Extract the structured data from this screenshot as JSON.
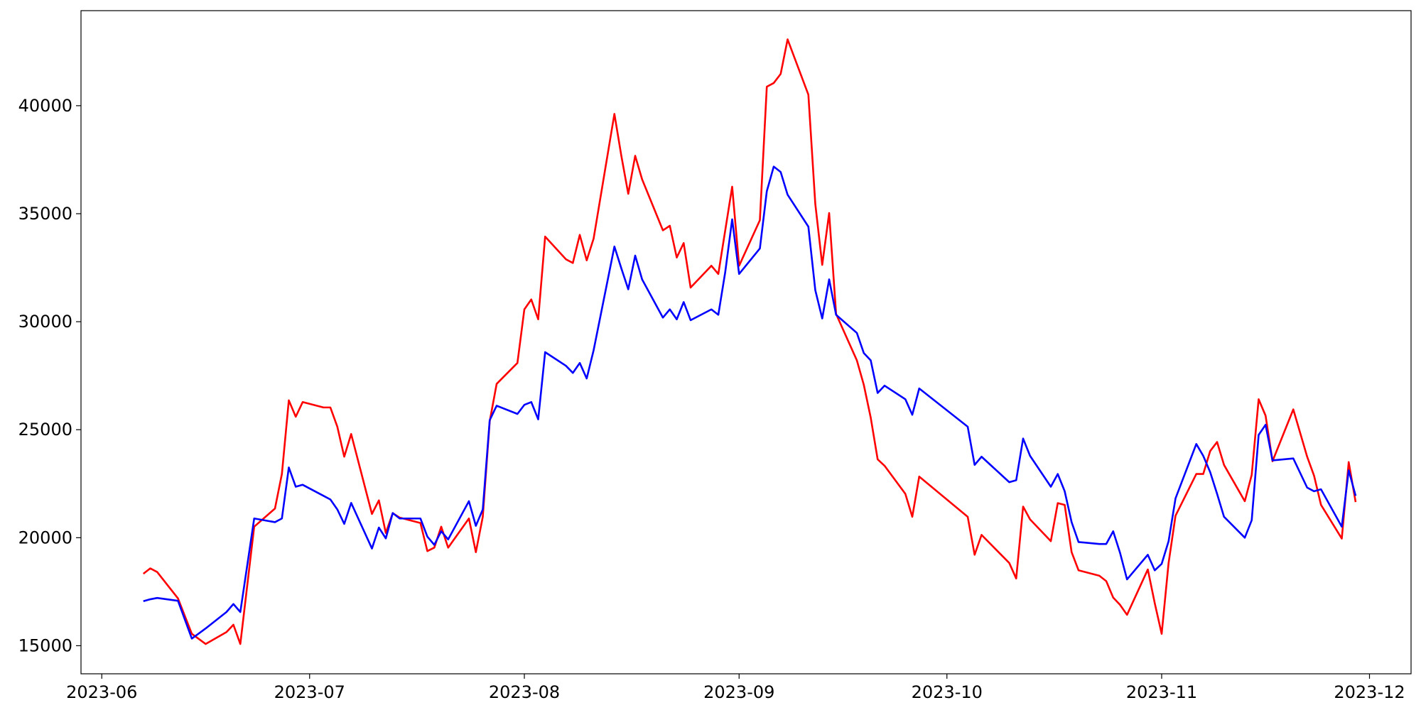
{
  "chart_data": {
    "type": "line",
    "x": [
      "2023-06-07",
      "2023-06-08",
      "2023-06-09",
      "2023-06-12",
      "2023-06-14",
      "2023-06-16",
      "2023-06-19",
      "2023-06-20",
      "2023-06-21",
      "2023-06-23",
      "2023-06-26",
      "2023-06-27",
      "2023-06-28",
      "2023-06-29",
      "2023-06-30",
      "2023-07-03",
      "2023-07-04",
      "2023-07-05",
      "2023-07-06",
      "2023-07-07",
      "2023-07-10",
      "2023-07-11",
      "2023-07-12",
      "2023-07-13",
      "2023-07-14",
      "2023-07-17",
      "2023-07-18",
      "2023-07-19",
      "2023-07-20",
      "2023-07-21",
      "2023-07-24",
      "2023-07-25",
      "2023-07-26",
      "2023-07-27",
      "2023-07-28",
      "2023-07-31",
      "2023-08-01",
      "2023-08-02",
      "2023-08-03",
      "2023-08-04",
      "2023-08-07",
      "2023-08-08",
      "2023-08-09",
      "2023-08-10",
      "2023-08-11",
      "2023-08-14",
      "2023-08-15",
      "2023-08-16",
      "2023-08-17",
      "2023-08-18",
      "2023-08-21",
      "2023-08-22",
      "2023-08-23",
      "2023-08-24",
      "2023-08-25",
      "2023-08-28",
      "2023-08-29",
      "2023-08-30",
      "2023-08-31",
      "2023-09-01",
      "2023-09-04",
      "2023-09-05",
      "2023-09-06",
      "2023-09-07",
      "2023-09-08",
      "2023-09-11",
      "2023-09-12",
      "2023-09-13",
      "2023-09-14",
      "2023-09-15",
      "2023-09-18",
      "2023-09-19",
      "2023-09-20",
      "2023-09-21",
      "2023-09-22",
      "2023-09-25",
      "2023-09-26",
      "2023-09-27",
      "2023-10-04",
      "2023-10-05",
      "2023-10-06",
      "2023-10-10",
      "2023-10-11",
      "2023-10-12",
      "2023-10-13",
      "2023-10-16",
      "2023-10-17",
      "2023-10-18",
      "2023-10-19",
      "2023-10-20",
      "2023-10-23",
      "2023-10-24",
      "2023-10-25",
      "2023-10-26",
      "2023-10-27",
      "2023-10-30",
      "2023-10-31",
      "2023-11-01",
      "2023-11-02",
      "2023-11-03",
      "2023-11-06",
      "2023-11-07",
      "2023-11-08",
      "2023-11-09",
      "2023-11-10",
      "2023-11-13",
      "2023-11-14",
      "2023-11-15",
      "2023-11-16",
      "2023-11-17",
      "2023-11-20",
      "2023-11-22",
      "2023-11-23",
      "2023-11-24",
      "2023-11-27",
      "2023-11-28",
      "2023-11-29"
    ],
    "series": [
      {
        "color": "#ff0000",
        "values": [
          18330,
          18580,
          18410,
          17190,
          15550,
          15080,
          15630,
          15970,
          15080,
          20510,
          21350,
          22950,
          26360,
          25600,
          26280,
          26030,
          26030,
          25140,
          23750,
          24800,
          21100,
          21730,
          20220,
          21140,
          20930,
          20680,
          19380,
          19540,
          20510,
          19540,
          20890,
          19330,
          20970,
          25390,
          27120,
          28090,
          30570,
          31030,
          30110,
          33940,
          32890,
          32720,
          34020,
          32840,
          33850,
          39620,
          37680,
          35920,
          37680,
          36590,
          34230,
          34440,
          32970,
          33640,
          31580,
          32590,
          32210,
          34230,
          36250,
          32590,
          34700,
          40880,
          41050,
          41470,
          43070,
          40510,
          35450,
          32630,
          35030,
          30360,
          28210,
          27080,
          25560,
          23630,
          23330,
          22030,
          20970,
          22830,
          20970,
          19210,
          20130,
          18830,
          18110,
          21440,
          20850,
          19840,
          21600,
          21520,
          19330,
          18490,
          18240,
          17990,
          17230,
          16890,
          16430,
          18530,
          16970,
          15550,
          18830,
          21020,
          22950,
          22950,
          24010,
          24430,
          23370,
          21690,
          22910,
          26410,
          25650,
          23540,
          25940,
          23750,
          22870,
          21520,
          19960,
          23500,
          21650
        ]
      },
      {
        "color": "#0000ff",
        "values": [
          17060,
          17150,
          17210,
          17080,
          15330,
          15800,
          16560,
          16930,
          16560,
          20890,
          20720,
          20890,
          23250,
          22360,
          22450,
          21940,
          21770,
          21310,
          20640,
          21610,
          19500,
          20470,
          19970,
          21140,
          20890,
          20890,
          20050,
          19670,
          20300,
          19920,
          21690,
          20550,
          21310,
          25440,
          26110,
          25730,
          26150,
          26280,
          25480,
          28590,
          27960,
          27630,
          28090,
          27370,
          28680,
          33480,
          32470,
          31500,
          33060,
          31960,
          30190,
          30570,
          30110,
          30910,
          30070,
          30570,
          30320,
          32300,
          34740,
          32210,
          33390,
          36040,
          37180,
          36930,
          35880,
          34400,
          31460,
          30150,
          31960,
          30320,
          29480,
          28550,
          28210,
          26700,
          27040,
          26410,
          25690,
          26910,
          25140,
          23370,
          23750,
          22570,
          22660,
          24590,
          23790,
          22360,
          22950,
          22150,
          20720,
          19800,
          19710,
          19710,
          20300,
          19290,
          18070,
          19210,
          18490,
          18790,
          19840,
          21820,
          24340,
          23790,
          23040,
          22030,
          20970,
          20000,
          20810,
          24760,
          25230,
          23580,
          23670,
          22320,
          22150,
          22240,
          20510,
          23120,
          21940
        ]
      }
    ],
    "xlim": [
      "2023-05-29",
      "2023-12-07"
    ],
    "xticks": [
      {
        "value": "2023-06-01",
        "label": "2023-06"
      },
      {
        "value": "2023-07-01",
        "label": "2023-07"
      },
      {
        "value": "2023-08-01",
        "label": "2023-08"
      },
      {
        "value": "2023-09-01",
        "label": "2023-09"
      },
      {
        "value": "2023-10-01",
        "label": "2023-10"
      },
      {
        "value": "2023-11-01",
        "label": "2023-11"
      },
      {
        "value": "2023-12-01",
        "label": "2023-12"
      }
    ],
    "ylim": [
      13700,
      44400
    ],
    "yticks": [
      15000,
      20000,
      25000,
      30000,
      35000,
      40000
    ],
    "grid": false
  }
}
